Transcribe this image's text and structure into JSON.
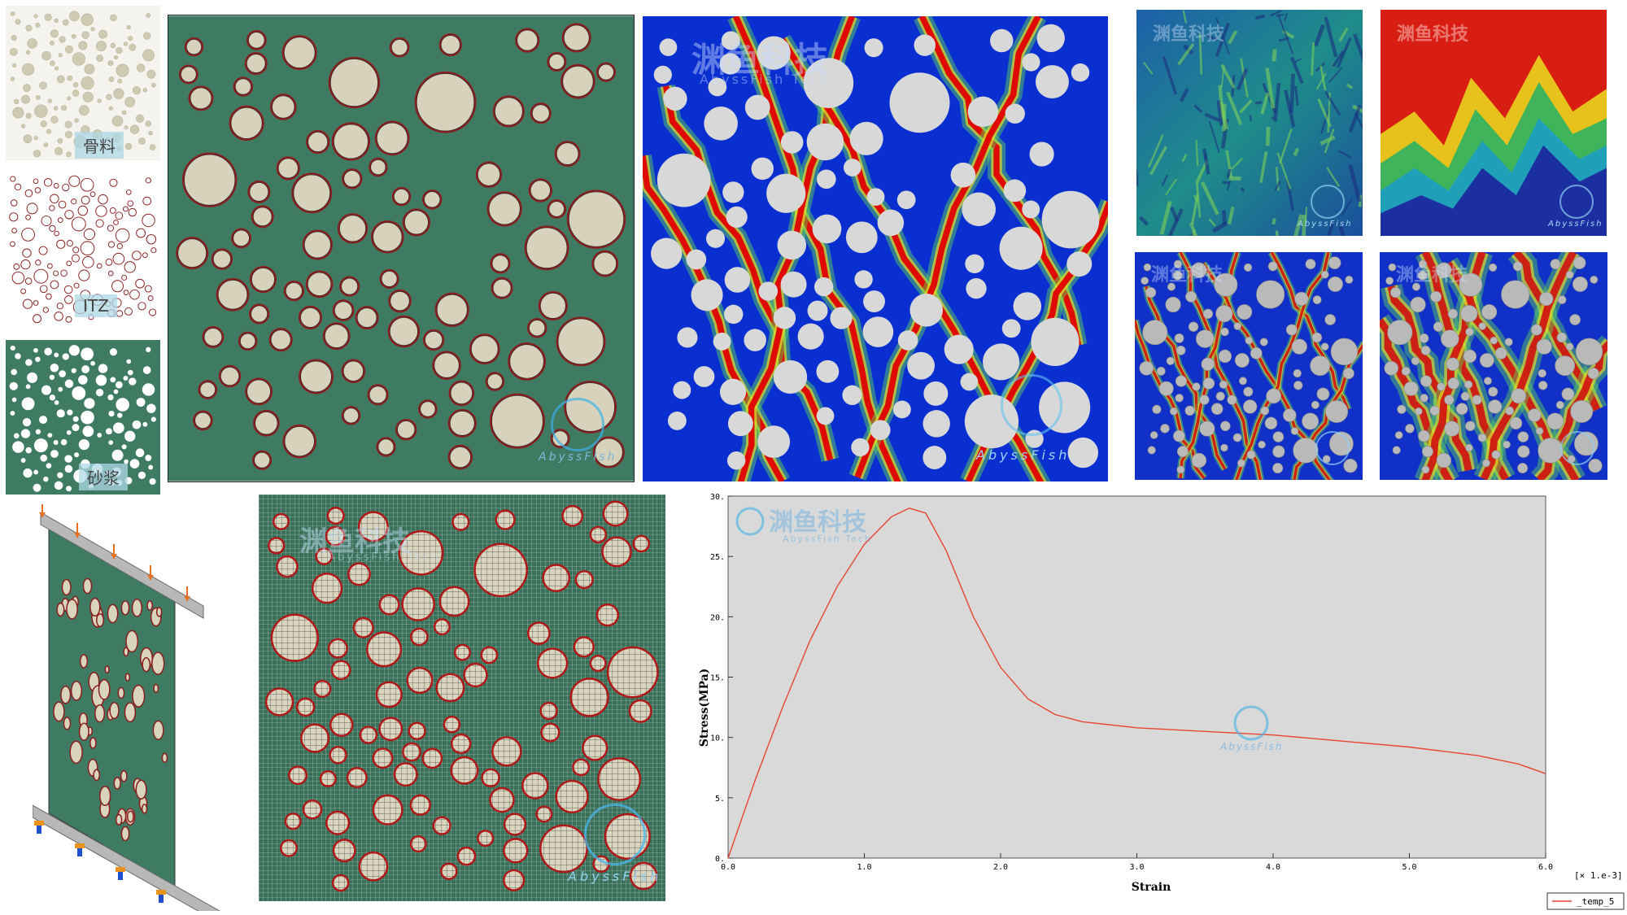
{
  "labels": {
    "aggregate": "骨料",
    "itz": "ITZ",
    "mortar": "砂浆"
  },
  "watermarks": {
    "cn": "渊鱼科技",
    "en": "AbyssFish Tech",
    "logo": "AbyssFish"
  },
  "colors": {
    "aggregate": "#d6d2bb",
    "mortar": "#3f7a63",
    "itz": "#8a1e1e",
    "contour_bg": "#0a2fd0",
    "crack": "#e00000",
    "plot_bg": "#d9d9d9",
    "curve": "#e8452f"
  },
  "chart_data": {
    "type": "line",
    "xlabel": "Strain",
    "ylabel": "Stress(MPa)",
    "x_multiplier_label": "[× 1.e-3]",
    "xlim": [
      0.0,
      6.0
    ],
    "ylim": [
      0.0,
      30.0
    ],
    "xticks": [
      "0.0",
      "1.0",
      "2.0",
      "3.0",
      "4.0",
      "5.0",
      "6.0"
    ],
    "yticks": [
      "0.",
      "5.",
      "10.",
      "15.",
      "20.",
      "25.",
      "30."
    ],
    "series": [
      {
        "name": "_temp_5",
        "x": [
          0.0,
          0.2,
          0.4,
          0.6,
          0.8,
          1.0,
          1.2,
          1.33,
          1.45,
          1.6,
          1.8,
          2.0,
          2.2,
          2.4,
          2.6,
          3.0,
          3.5,
          4.0,
          4.5,
          5.0,
          5.5,
          5.8,
          6.0
        ],
        "y": [
          0.0,
          6.5,
          12.5,
          18.0,
          22.5,
          26.0,
          28.3,
          29.0,
          28.6,
          25.5,
          20.0,
          15.8,
          13.2,
          11.9,
          11.3,
          10.8,
          10.5,
          10.2,
          9.7,
          9.2,
          8.5,
          7.8,
          7.0
        ]
      }
    ],
    "legend": "bottom-right"
  }
}
